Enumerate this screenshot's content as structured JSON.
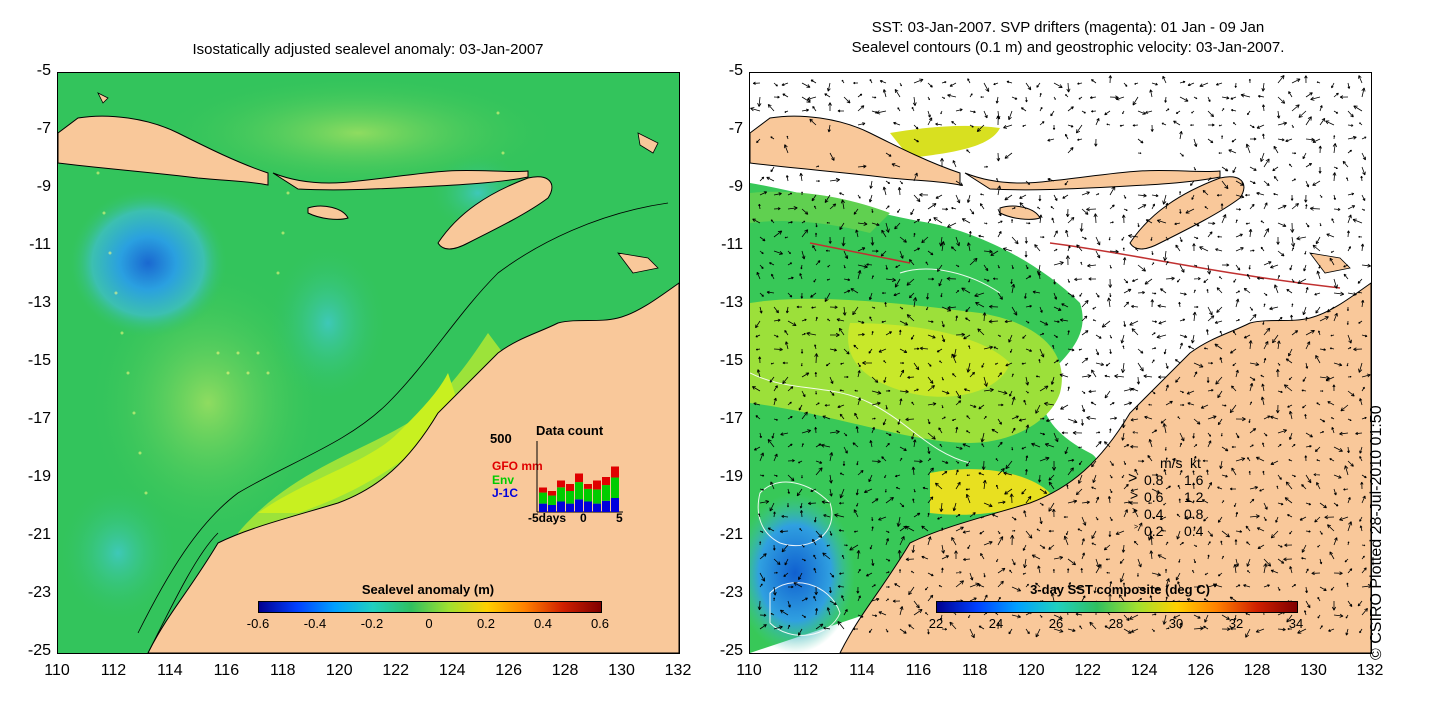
{
  "left_panel": {
    "title": "Isostatically adjusted sealevel anomaly: 03-Jan-2007",
    "colorbar": {
      "label": "Sealevel anomaly (m)",
      "ticks": [
        "-0.6",
        "-0.4",
        "-0.2",
        "0",
        "0.2",
        "0.4",
        "0.6"
      ]
    },
    "inset": {
      "title": "Data count",
      "ymax_label": "500",
      "legend": [
        {
          "label": "GFO mm",
          "color": "#e00000"
        },
        {
          "label": "Env",
          "color": "#00cc00"
        },
        {
          "label": "J-1C",
          "color": "#0000dd"
        }
      ],
      "xlabel_start": "-5days",
      "xlabel_mid": "0",
      "xlabel_end": "5",
      "bars_total": [
        0.35,
        0.3,
        0.45,
        0.4,
        0.55,
        0.4,
        0.45,
        0.5,
        0.65
      ],
      "bars_blue": [
        0.12,
        0.1,
        0.15,
        0.12,
        0.18,
        0.15,
        0.12,
        0.16,
        0.2
      ]
    }
  },
  "right_panel": {
    "title_line1": "SST: 03-Jan-2007. SVP drifters (magenta): 01 Jan - 09 Jan",
    "title_line2": "Sealevel contours (0.1 m) and geostrophic velocity: 03-Jan-2007.",
    "colorbar": {
      "label": "3-day SST composite (deg C)",
      "ticks": [
        "22",
        "24",
        "26",
        "28",
        "30",
        "32",
        "34"
      ]
    },
    "speed_legend": {
      "header_ms": "m/s",
      "header_kt": "kt",
      "rows": [
        {
          "ms": "0.8",
          "kt": "1.6"
        },
        {
          "ms": "0.6",
          "kt": "1.2"
        },
        {
          "ms": "0.4",
          "kt": "0.8"
        },
        {
          "ms": "0.2",
          "kt": "0.4"
        }
      ]
    }
  },
  "axes": {
    "y_ticks": [
      "-5",
      "-7",
      "-9",
      "-11",
      "-13",
      "-15",
      "-17",
      "-19",
      "-21",
      "-23",
      "-25"
    ],
    "x_ticks": [
      "110",
      "112",
      "114",
      "116",
      "118",
      "120",
      "122",
      "124",
      "126",
      "128",
      "130",
      "132"
    ]
  },
  "credit": "© CSIRO Plotted 28-Jul-2010 01:50",
  "colors": {
    "land": "#f9c89a",
    "ocean_green": "#33c45c",
    "ocean_light": "#7fd46a",
    "coast_yellow": "#c8f020",
    "low_blue": "#2aa0e0"
  }
}
